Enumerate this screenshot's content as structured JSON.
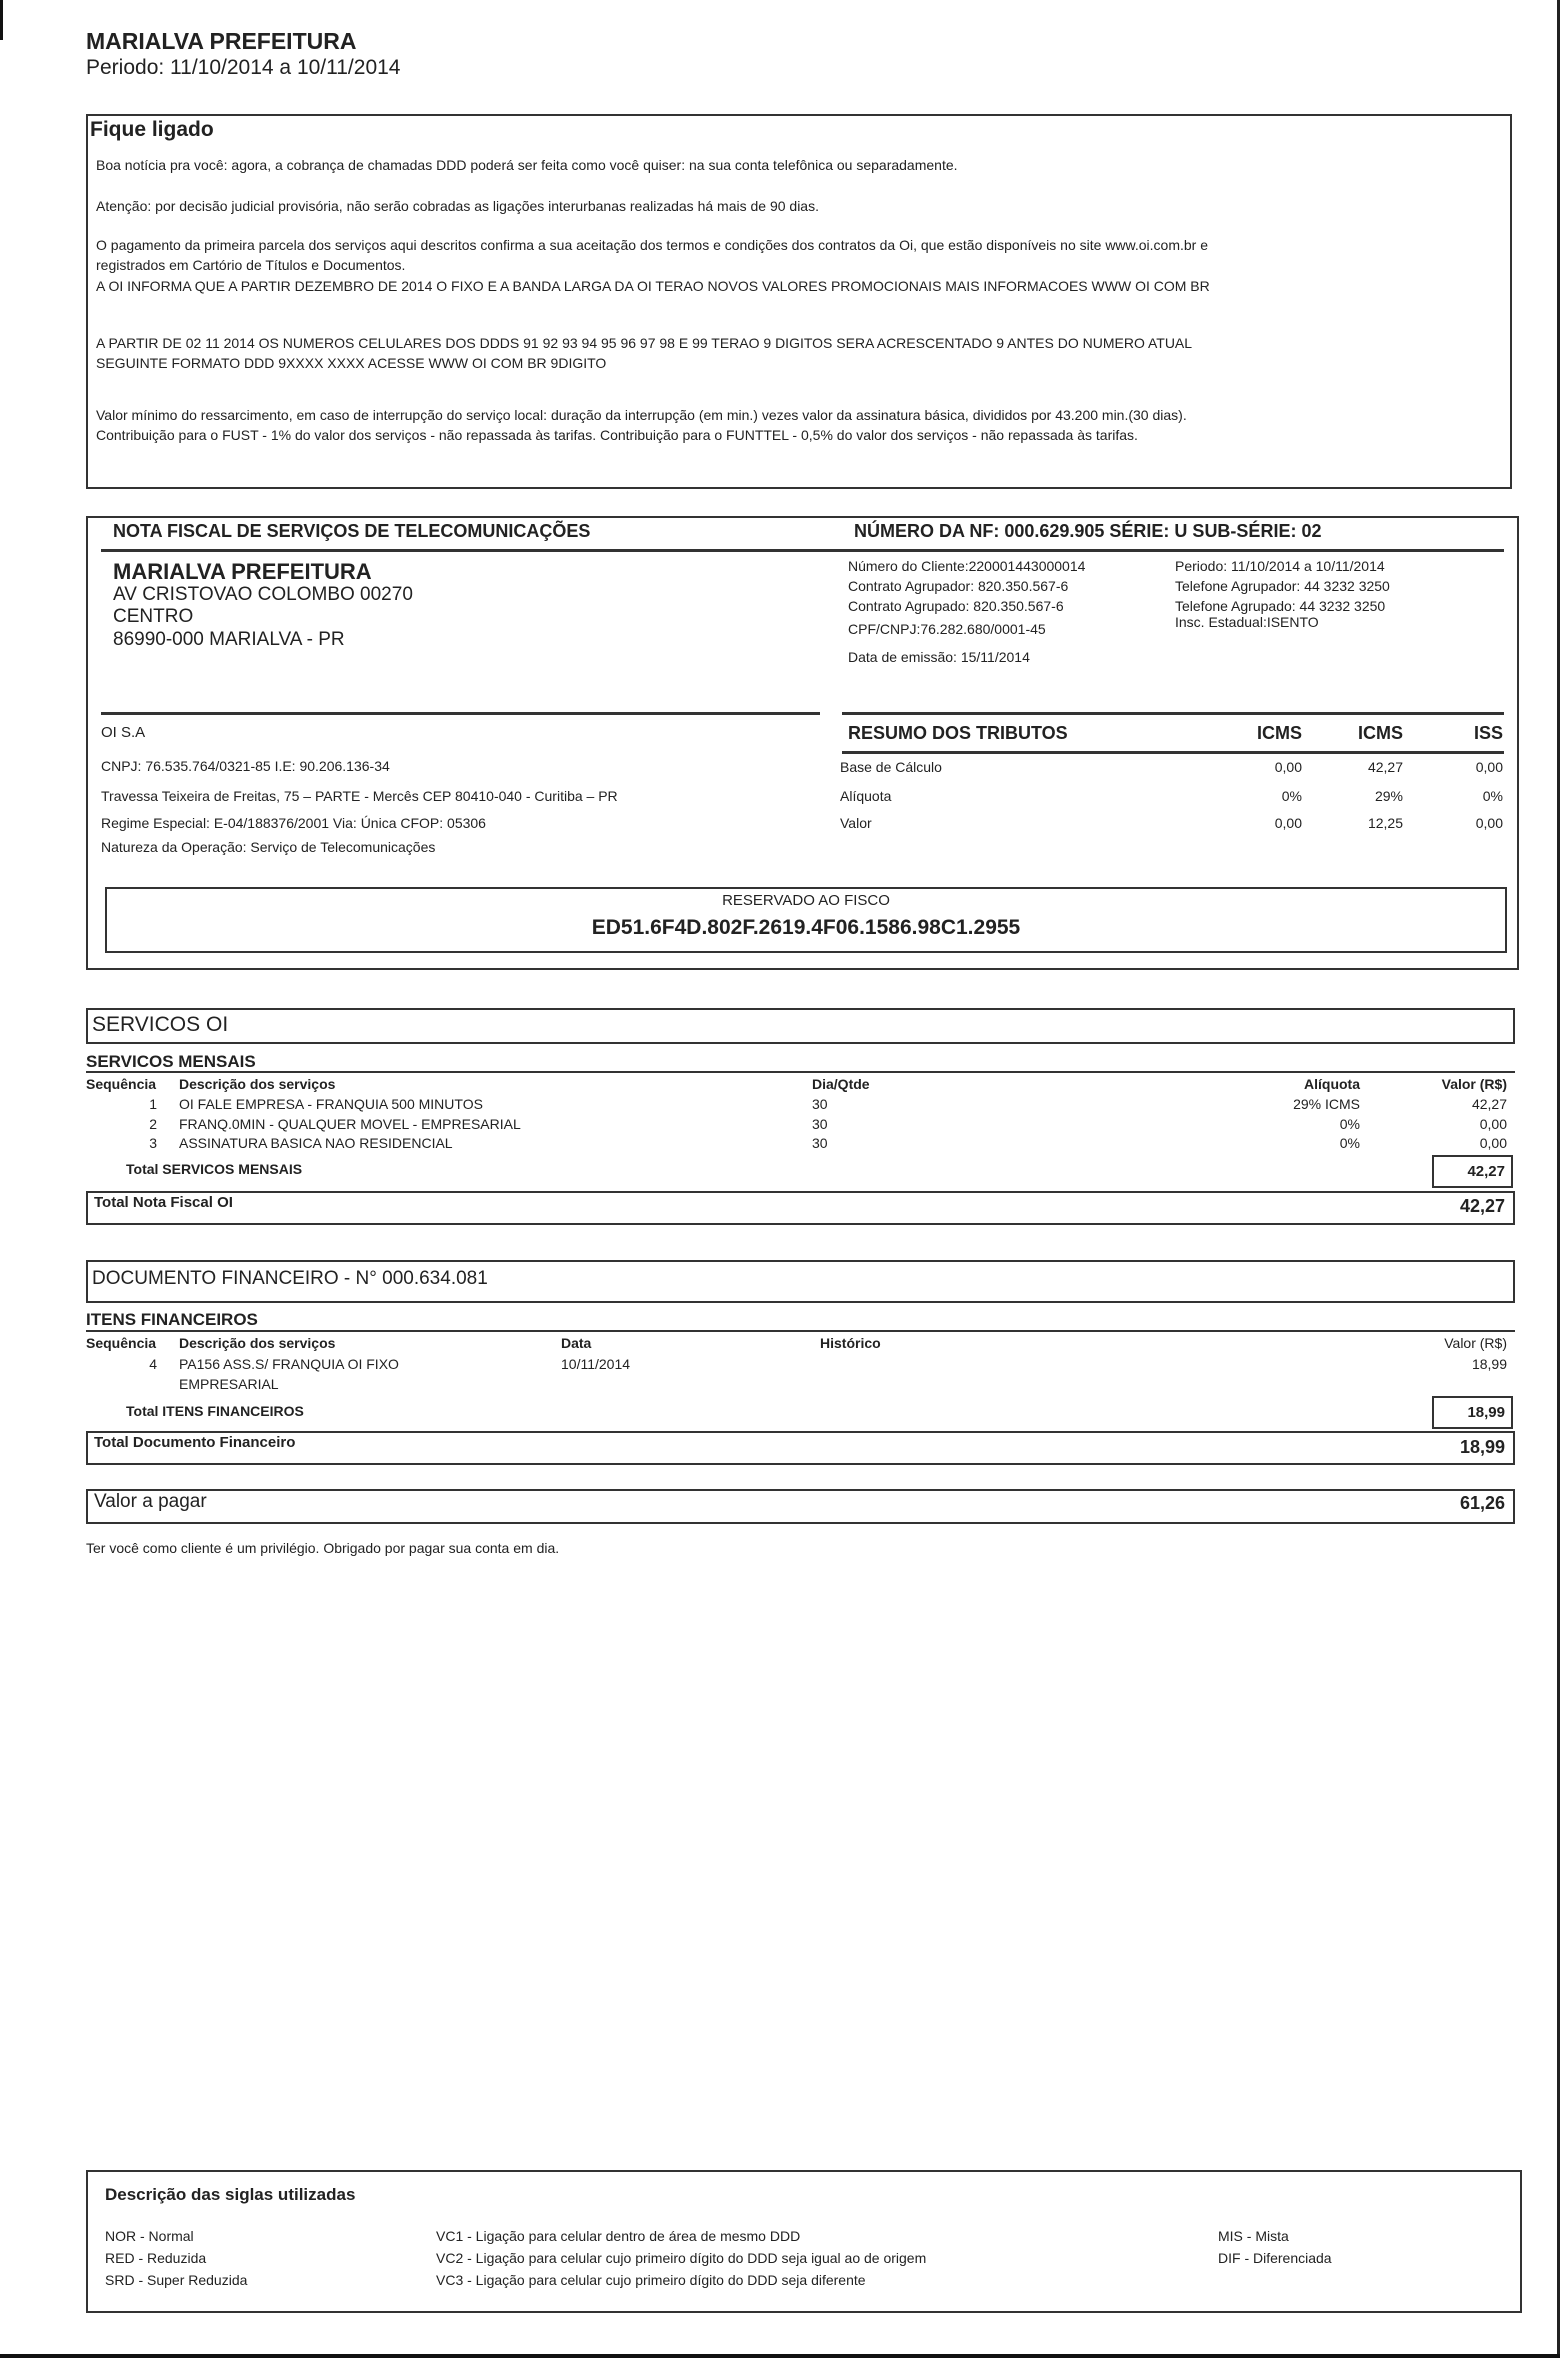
{
  "header": {
    "title": "MARIALVA PREFEITURA",
    "period": "Periodo: 11/10/2014 a 10/11/2014"
  },
  "notice": {
    "title": "Fique ligado",
    "lines": [
      "Boa notícia pra você: agora, a cobrança de chamadas DDD poderá ser feita como você quiser: na sua conta telefônica ou separadamente.",
      "Atenção: por decisão judicial provisória, não serão cobradas as ligações interurbanas realizadas há mais de 90 dias.",
      "O pagamento da primeira parcela dos serviços aqui descritos confirma a sua aceitação dos termos e condições dos contratos da Oi, que estão disponíveis no site www.oi.com.br e",
      "registrados em Cartório de Títulos e Documentos.",
      "A OI INFORMA QUE  A PARTIR DEZEMBRO DE 2014  O FIXO E A BANDA LARGA DA OI TERAO NOVOS VALORES PROMOCIONAIS  MAIS INFORMACOES  WWW OI COM BR",
      "A PARTIR DE 02 11 2014  OS NUMEROS CELULARES DOS DDDS 91  92  93  94  95  96  97  98 E 99 TERAO 9 DIGITOS  SERA ACRESCENTADO 9 ANTES DO NUMERO ATUAL",
      "SEGUINTE FORMATO   DDD  9XXXX XXXX  ACESSE WWW OI COM BR 9DIGITO",
      "Valor mínimo do ressarcimento, em caso de interrupção do serviço local: duração da interrupção (em min.) vezes valor da assinatura básica, divididos por 43.200 min.(30 dias).",
      "Contribuição para o FUST - 1% do valor dos serviços - não repassada às tarifas.  Contribuição para o FUNTTEL - 0,5% do valor dos serviços - não repassada às tarifas."
    ]
  },
  "invoice": {
    "title": "NOTA FISCAL DE SERVIÇOS DE TELECOMUNICAÇÕES",
    "number": "NÚMERO DA NF: 000.629.905  SÉRIE: U SUB-SÉRIE: 02",
    "customer": {
      "name": "MARIALVA PREFEITURA",
      "address": "AV  CRISTOVAO COLOMBO 00270",
      "district": "CENTRO",
      "city": "86990-000 MARIALVA - PR"
    },
    "info_left": [
      "Número do Cliente:220001443000014",
      "Contrato Agrupador: 820.350.567-6",
      "Contrato Agrupado:  820.350.567-6",
      "CPF/CNPJ:76.282.680/0001-45",
      "Data de emissão: 15/11/2014"
    ],
    "info_right": [
      "Periodo: 11/10/2014 a 10/11/2014",
      "Telefone Agrupador: 44 3232 3250",
      "Telefone Agrupado: 44 3232 3250",
      "Insc. Estadual:ISENTO"
    ],
    "issuer": {
      "name": "OI S.A",
      "cnpj": "CNPJ: 76.535.764/0321-85  I.E: 90.206.136-34",
      "address": "Travessa Teixeira de Freitas, 75 – PARTE - Mercês  CEP 80410-040 - Curitiba – PR",
      "regime": "Regime Especial: E-04/188376/2001 Via: Única CFOP: 05306",
      "nature": "Natureza da Operação: Serviço de Telecomunicações"
    },
    "taxes": {
      "title": "RESUMO DOS TRIBUTOS",
      "columns": [
        "ICMS",
        "ICMS",
        "ISS"
      ],
      "rows": [
        {
          "label": "Base de Cálculo",
          "values": [
            "0,00",
            "42,27",
            "0,00"
          ]
        },
        {
          "label": "Alíquota",
          "values": [
            "0%",
            "29%",
            "0%"
          ]
        },
        {
          "label": "Valor",
          "values": [
            "0,00",
            "12,25",
            "0,00"
          ]
        }
      ]
    },
    "fisco": {
      "label": "RESERVADO AO FISCO",
      "code": "ED51.6F4D.802F.2619.4F06.1586.98C1.2955"
    }
  },
  "services": {
    "title": "SERVICOS OI",
    "subtitle": "SERVICOS MENSAIS",
    "columns": [
      "Sequência",
      "Descrição dos serviços",
      "Dia/Qtde",
      "Alíquota",
      "Valor (R$)"
    ],
    "rows": [
      {
        "seq": "1",
        "desc": "OI FALE EMPRESA - FRANQUIA 500 MINUTOS",
        "qty": "30",
        "rate": "29% ICMS",
        "value": "42,27"
      },
      {
        "seq": "2",
        "desc": "FRANQ.0MIN - QUALQUER MOVEL - EMPRESARIAL",
        "qty": "30",
        "rate": "0%",
        "value": "0,00"
      },
      {
        "seq": "3",
        "desc": "ASSINATURA BASICA NAO RESIDENCIAL",
        "qty": "30",
        "rate": "0%",
        "value": "0,00"
      }
    ],
    "total_label": "Total SERVICOS MENSAIS",
    "total_value": "42,27",
    "nf_total_label": "Total Nota Fiscal  OI",
    "nf_total_value": "42,27"
  },
  "financial": {
    "title": "DOCUMENTO FINANCEIRO - N° 000.634.081",
    "subtitle": "ITENS FINANCEIROS",
    "columns": [
      "Sequência",
      "Descrição dos serviços",
      "Data",
      "Histórico",
      "Valor (R$)"
    ],
    "rows": [
      {
        "seq": "4",
        "desc": "PA156 ASS.S/ FRANQUIA OI FIXO",
        "desc2": "EMPRESARIAL",
        "date": "10/11/2014",
        "value": "18,99"
      }
    ],
    "total_label": "Total ITENS FINANCEIROS",
    "total_value": "18,99",
    "doc_total_label": "Total Documento Financeiro",
    "doc_total_value": "18,99"
  },
  "payment": {
    "label": "Valor a pagar",
    "value": "61,26",
    "thanks": "Ter você como cliente é um privilégio. Obrigado por pagar sua conta em dia."
  },
  "legend": {
    "title": "Descrição das siglas utilizadas",
    "col1": [
      "NOR - Normal",
      "RED - Reduzida",
      "SRD - Super Reduzida"
    ],
    "col2": [
      "VC1 - Ligação para celular dentro de área de mesmo DDD",
      "VC2 - Ligação para celular cujo primeiro dígito do DDD seja igual ao de origem",
      "VC3 - Ligação para celular cujo primeiro dígito do DDD seja diferente"
    ],
    "col3": [
      "MIS - Mista",
      "DIF - Diferenciada"
    ]
  }
}
